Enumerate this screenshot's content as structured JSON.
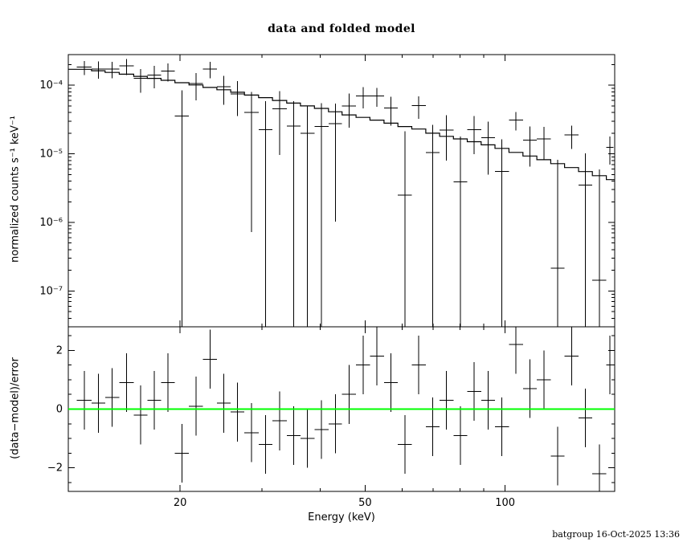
{
  "page": {
    "background": "#ffffff",
    "timestamp": "batgroup 16-Oct-2025 13:36"
  },
  "chart_data": {
    "type": "scatter",
    "title": "data and folded model",
    "xlabel": "Energy (keV)",
    "xscale": "log",
    "xlim": [
      11.5,
      172
    ],
    "xticks": [
      20,
      50,
      100
    ],
    "xtick_labels": [
      "20",
      "50",
      "100"
    ],
    "colors": {
      "data": "#000000",
      "model": "#000000",
      "zero_line": "#00ff00",
      "frame": "#000000",
      "background": "#ffffff"
    },
    "bin_edges_keV": [
      12.0,
      12.9,
      13.8,
      14.8,
      15.9,
      17.0,
      18.2,
      19.5,
      20.9,
      22.4,
      24.0,
      25.7,
      27.5,
      29.5,
      31.6,
      33.9,
      36.3,
      38.9,
      41.7,
      44.6,
      47.8,
      51.2,
      54.9,
      58.8,
      63.0,
      67.5,
      72.3,
      77.4,
      82.9,
      88.8,
      95.1,
      101.9,
      109.2,
      117.0,
      125.3,
      134.2,
      143.8,
      154.0,
      165.0,
      171.0
    ],
    "panels": [
      {
        "name": "spectrum",
        "ylabel": "normalized counts s⁻¹ keV⁻¹",
        "yscale": "log",
        "ylim": [
          3e-08,
          0.00028
        ],
        "ytick_values": [
          0.0001,
          1e-05,
          1e-06,
          1e-07
        ],
        "ytick_labels": [
          "10⁻⁴",
          "10⁻⁵",
          "10⁻⁶",
          "10⁻⁷"
        ],
        "model_counts": [
          0.000171,
          0.000163,
          0.000154,
          0.000145,
          0.000135,
          0.000126,
          0.000118,
          0.000109,
          0.000101,
          9.3e-05,
          8.6e-05,
          7.9e-05,
          7.2e-05,
          6.6e-05,
          6e-05,
          5.5e-05,
          5e-05,
          4.6e-05,
          4.1e-05,
          3.7e-05,
          3.4e-05,
          3.1e-05,
          2.8e-05,
          2.5e-05,
          2.3e-05,
          2e-05,
          1.8e-05,
          1.65e-05,
          1.5e-05,
          1.35e-05,
          1.2e-05,
          1.05e-05,
          9.3e-06,
          8.2e-06,
          7.2e-06,
          6.3e-06,
          5.5e-06,
          4.8e-06,
          4.2e-06
        ],
        "relative_errors": [
          0.25,
          0.3,
          0.3,
          0.35,
          0.35,
          0.4,
          0.4,
          0.45,
          0.45,
          0.5,
          0.5,
          0.5,
          0.55,
          0.55,
          0.6,
          0.6,
          0.6,
          0.65,
          0.65,
          0.7,
          0.7,
          0.7,
          0.75,
          0.75,
          0.8,
          0.8,
          0.8,
          0.85,
          0.85,
          0.9,
          0.9,
          0.9,
          1.0,
          1.0,
          1.1,
          1.1,
          1.2,
          1.2,
          1.3
        ]
      },
      {
        "name": "residuals",
        "ylabel": "(data−model)/error",
        "yscale": "linear",
        "ylim": [
          -2.8,
          2.8
        ],
        "ytick_values": [
          -2,
          0,
          2
        ],
        "ytick_labels": [
          "−2",
          "0",
          "2"
        ],
        "residual_sigma": [
          0.3,
          0.2,
          0.4,
          0.9,
          -0.2,
          0.3,
          0.9,
          -1.5,
          0.1,
          1.7,
          0.2,
          -0.1,
          -0.8,
          -1.2,
          -0.4,
          -0.9,
          -1.0,
          -0.7,
          -0.5,
          0.5,
          1.5,
          1.8,
          0.9,
          -1.2,
          1.5,
          -0.6,
          0.3,
          -0.9,
          0.6,
          0.3,
          -0.6,
          2.2,
          0.7,
          1.0,
          -1.6,
          1.8,
          -0.3,
          -2.2,
          1.5
        ],
        "residual_error": 1
      }
    ]
  }
}
